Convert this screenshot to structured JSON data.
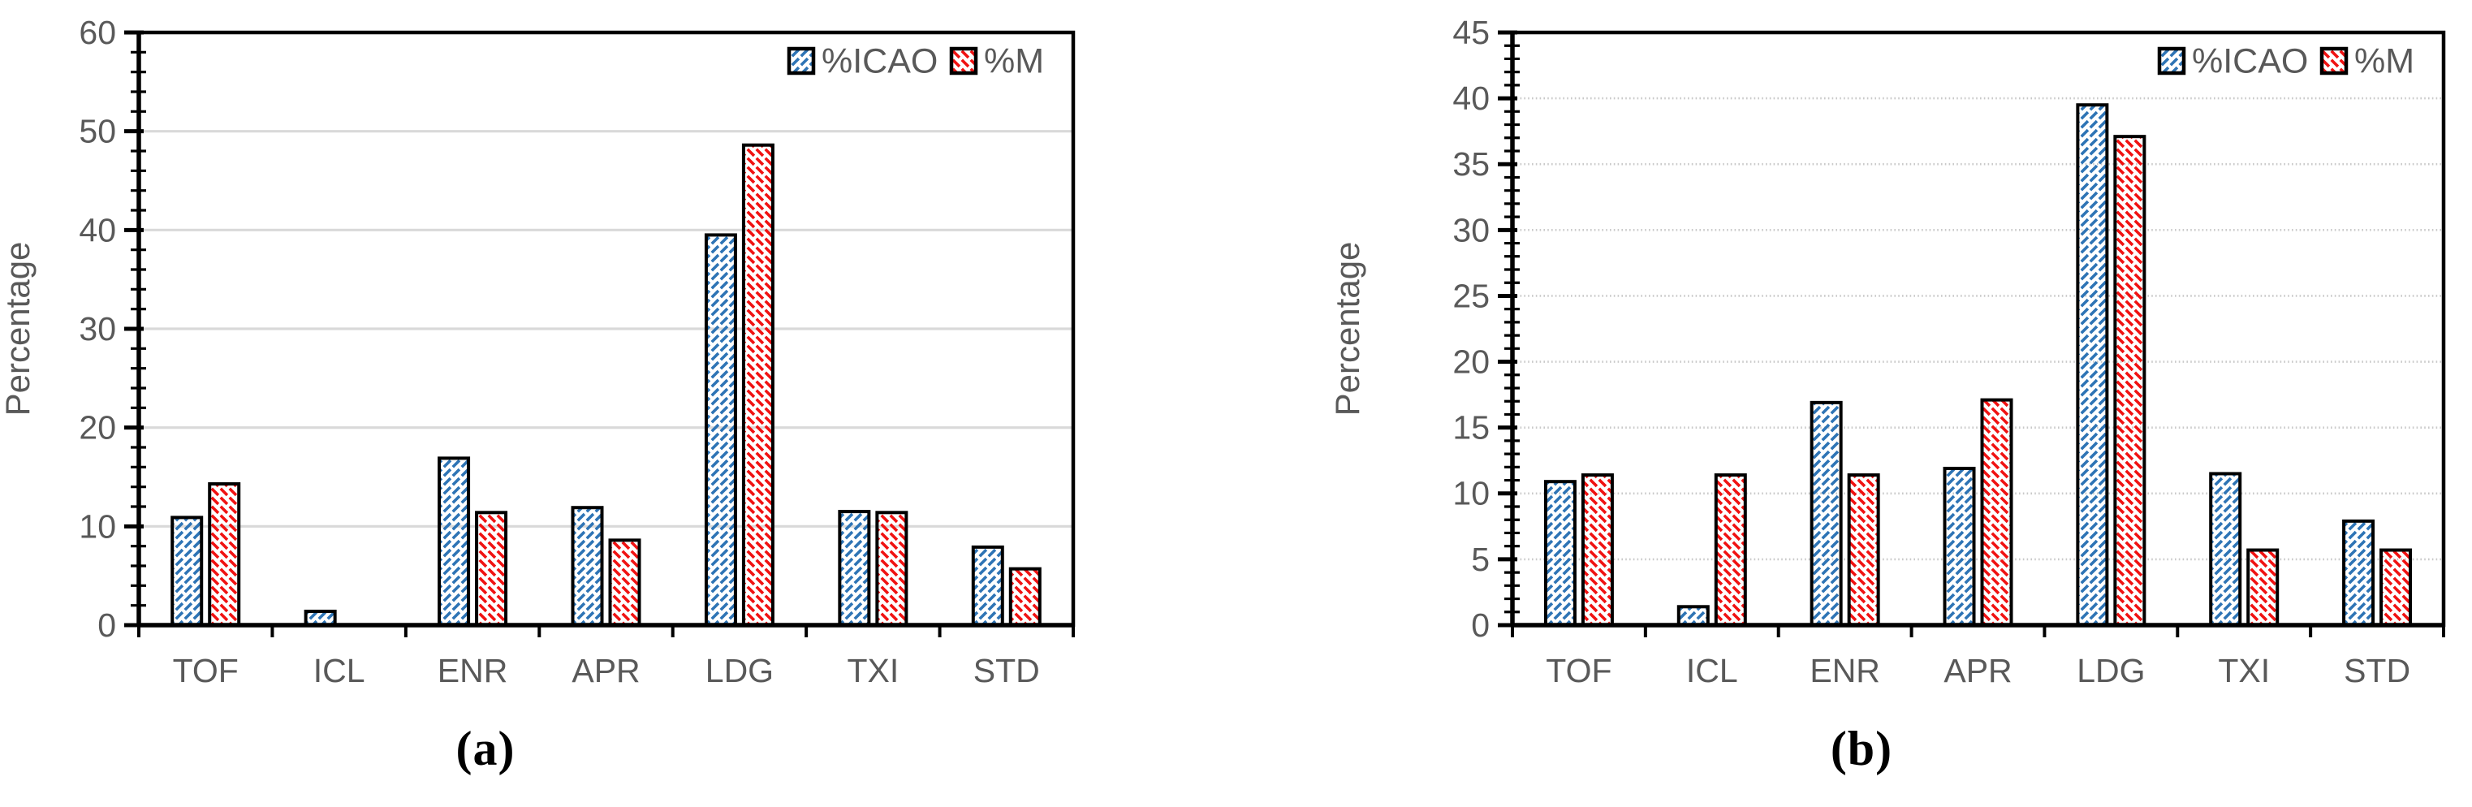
{
  "figure": {
    "background": "#ffffff",
    "text_color": "#595959",
    "axis_color": "#000000",
    "grid_color_solid": "#D9D9D9",
    "grid_color_dotted": "#C9C9C9",
    "series_colors": {
      "icao_blue": "#2E74B5",
      "m_red": "#F01212"
    }
  },
  "chart_data": [
    {
      "type": "bar",
      "panel_label": "(a)",
      "ylabel": "Percentage",
      "categories": [
        "TOF",
        "ICL",
        "ENR",
        "APR",
        "LDG",
        "TXI",
        "STD"
      ],
      "series": [
        {
          "name": "%ICAO",
          "color_key": "icao_blue",
          "hatch": "up",
          "values": [
            10.9,
            1.4,
            16.9,
            11.9,
            39.5,
            11.5,
            7.9
          ]
        },
        {
          "name": "%M",
          "color_key": "m_red",
          "hatch": "down",
          "values": [
            14.3,
            0,
            11.4,
            8.6,
            48.6,
            11.4,
            5.7
          ]
        }
      ],
      "ylim": [
        0,
        60
      ],
      "y_major_step": 10,
      "y_minor_step": 2,
      "y_tick_labels": [
        "0",
        "10",
        "20",
        "30",
        "40",
        "50",
        "60"
      ],
      "grid": "solid",
      "legend_position": "top-right",
      "legend_labels": [
        "%ICAO",
        "%M"
      ]
    },
    {
      "type": "bar",
      "panel_label": "(b)",
      "ylabel": "Percentage",
      "categories": [
        "TOF",
        "ICL",
        "ENR",
        "APR",
        "LDG",
        "TXI",
        "STD"
      ],
      "series": [
        {
          "name": "%ICAO",
          "color_key": "icao_blue",
          "hatch": "up",
          "values": [
            10.9,
            1.4,
            16.9,
            11.9,
            39.5,
            11.5,
            7.9
          ]
        },
        {
          "name": "%M",
          "color_key": "m_red",
          "hatch": "down",
          "values": [
            11.4,
            11.4,
            11.4,
            17.1,
            37.1,
            5.7,
            5.7
          ]
        }
      ],
      "ylim": [
        0,
        45
      ],
      "y_major_step": 5,
      "y_minor_step": 1,
      "y_tick_labels": [
        "0",
        "5",
        "10",
        "15",
        "20",
        "25",
        "30",
        "35",
        "40",
        "45"
      ],
      "grid": "dotted",
      "legend_position": "top-right",
      "legend_labels": [
        "%ICAO",
        "%M"
      ]
    }
  ]
}
